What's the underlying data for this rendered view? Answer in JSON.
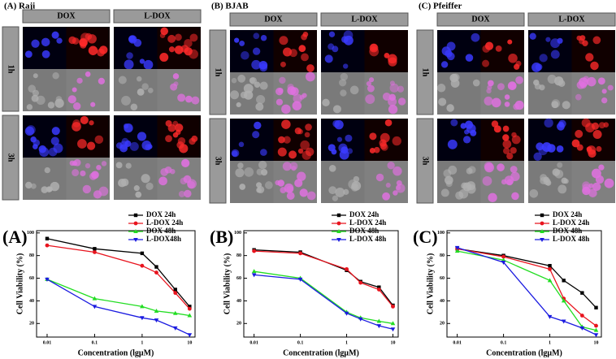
{
  "panels": [
    {
      "label": "(A) Raji",
      "columns": [
        "DOX",
        "L-DOX"
      ],
      "rows": [
        "1h",
        "3h"
      ]
    },
    {
      "label": "(B) BJAB",
      "columns": [
        "DOX",
        "L-DOX"
      ],
      "rows": [
        "1h",
        "3h"
      ]
    },
    {
      "label": "(C) Pfeiffer",
      "columns": [
        "DOX",
        "L-DOX"
      ],
      "rows": [
        "1h",
        "3h"
      ]
    }
  ],
  "chart_data": [
    {
      "type": "line",
      "annotation": "(A)",
      "x_label": "Concentration (lgμM)",
      "y_label": "Cell Viability (%)",
      "x": [
        0.01,
        0.1,
        1,
        2,
        5,
        10
      ],
      "xlim": [
        0.006,
        13
      ],
      "xticks": [
        0.01,
        0.1,
        1,
        10
      ],
      "log_x": true,
      "ylim": [
        8,
        102
      ],
      "yticks": [
        20,
        40,
        60,
        80,
        100
      ],
      "legend": "upper right",
      "series": [
        {
          "name": "DOX 24h",
          "color": "#000000",
          "values": [
            95,
            86,
            82,
            70,
            50,
            35
          ]
        },
        {
          "name": "L-DOX 24h",
          "color": "#e8141e",
          "values": [
            89,
            83,
            71,
            65,
            47,
            33
          ]
        },
        {
          "name": "DOX 48h",
          "color": "#22dd22",
          "values": [
            59,
            42,
            35,
            31,
            29,
            27
          ]
        },
        {
          "name": "L-DOX48h",
          "color": "#1a1ae0",
          "values": [
            59,
            35,
            25,
            23,
            16,
            10
          ]
        }
      ]
    },
    {
      "type": "line",
      "annotation": "(B)",
      "x_label": "Concentration (lgμM)",
      "y_label": "Cell Viability (%)",
      "x": [
        0.01,
        0.1,
        1,
        2,
        5,
        10
      ],
      "xlim": [
        0.006,
        13
      ],
      "xticks": [
        0.01,
        0.1,
        1,
        10
      ],
      "log_x": true,
      "ylim": [
        8,
        102
      ],
      "yticks": [
        20,
        40,
        60,
        80,
        100
      ],
      "legend": "upper right",
      "series": [
        {
          "name": "DOX 24h",
          "color": "#000000",
          "values": [
            85,
            83,
            67,
            57,
            52,
            36
          ]
        },
        {
          "name": "L-DOX 24h",
          "color": "#e8141e",
          "values": [
            84,
            82,
            68,
            56,
            50,
            35
          ]
        },
        {
          "name": "DOX 48h",
          "color": "#22dd22",
          "values": [
            66,
            60,
            30,
            25,
            22,
            20
          ]
        },
        {
          "name": "L-DOX 48h",
          "color": "#1a1ae0",
          "values": [
            63,
            59,
            29,
            24,
            18,
            15
          ]
        }
      ]
    },
    {
      "type": "line",
      "annotation": "(C)",
      "x_label": "Concentration (lgμM)",
      "y_label": "Cell Viability (%)",
      "x": [
        0.01,
        0.1,
        1,
        2,
        5,
        10
      ],
      "xlim": [
        0.006,
        13
      ],
      "xticks": [
        0.01,
        0.1,
        1,
        10
      ],
      "log_x": true,
      "ylim": [
        8,
        102
      ],
      "yticks": [
        20,
        40,
        60,
        80,
        100
      ],
      "legend": "upper right",
      "series": [
        {
          "name": "DOX 24h",
          "color": "#000000",
          "values": [
            86,
            80,
            71,
            58,
            47,
            34
          ]
        },
        {
          "name": "L-DOX 24h",
          "color": "#e8141e",
          "values": [
            86,
            79,
            68,
            42,
            27,
            18
          ]
        },
        {
          "name": "DOX 48h",
          "color": "#22dd22",
          "values": [
            84,
            76,
            58,
            40,
            17,
            14
          ]
        },
        {
          "name": "L-DOX 48h",
          "color": "#1a1ae0",
          "values": [
            87,
            74,
            26,
            22,
            16,
            10
          ]
        }
      ]
    }
  ]
}
